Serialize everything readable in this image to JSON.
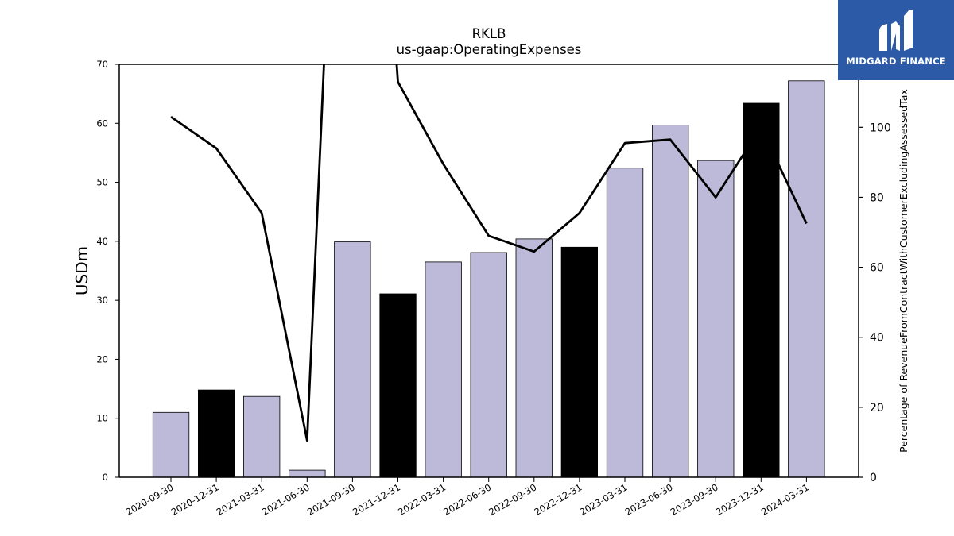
{
  "logo": {
    "text": "MIDGARD FINANCE",
    "background": "#2d5aa6"
  },
  "chart_data": {
    "type": "bar",
    "title": "RKLB",
    "subtitle": "us-gaap:OperatingExpenses",
    "ylabel": "USDm",
    "y2label": "Percentage of RevenueFromContractWithCustomerExcludingAssessedTax",
    "ylim": [
      0,
      70
    ],
    "y2lim": [
      0,
      118
    ],
    "yticks": [
      0,
      10,
      20,
      30,
      40,
      50,
      60,
      70
    ],
    "y2ticks": [
      0,
      20,
      40,
      60,
      80,
      100
    ],
    "categories": [
      "2020-09-30",
      "2020-12-31",
      "2021-03-31",
      "2021-06-30",
      "2021-09-30",
      "2021-12-31",
      "2022-03-31",
      "2022-06-30",
      "2022-09-30",
      "2022-12-31",
      "2023-03-31",
      "2023-06-30",
      "2023-09-30",
      "2023-12-31",
      "2024-03-31"
    ],
    "values": [
      11.0,
      14.8,
      13.7,
      1.2,
      39.9,
      31.1,
      36.5,
      38.1,
      40.4,
      39.0,
      52.4,
      59.7,
      53.7,
      63.4,
      67.2
    ],
    "highlighted": [
      false,
      true,
      false,
      false,
      false,
      true,
      false,
      false,
      false,
      true,
      false,
      false,
      false,
      true,
      false
    ],
    "bar_colors": {
      "normal": "#bdbad9",
      "highlight": "#000000"
    },
    "line_series": {
      "values": [
        103,
        94,
        75.5,
        10.5,
        300,
        113,
        89.5,
        69,
        64.5,
        75.5,
        95.5,
        96.5,
        80,
        100,
        72.5
      ]
    },
    "legend": "none",
    "grid": false
  }
}
